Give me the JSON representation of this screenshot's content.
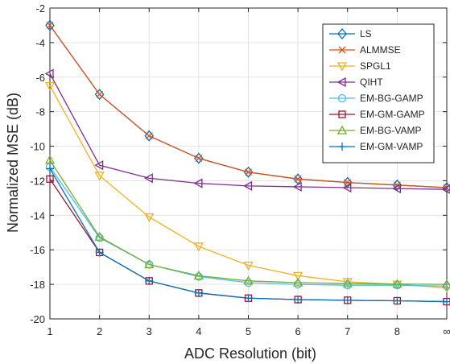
{
  "chart_data": {
    "type": "line",
    "title": "",
    "xlabel": "ADC Resolution (bit)",
    "ylabel": "Normalized MSE (dB)",
    "x": [
      1,
      2,
      3,
      4,
      5,
      6,
      7,
      8,
      9
    ],
    "x_tick_labels": [
      "1",
      "2",
      "3",
      "4",
      "5",
      "6",
      "7",
      "8",
      "∞"
    ],
    "xlim": [
      1,
      9
    ],
    "ylim": [
      -20,
      -2
    ],
    "y_ticks": [
      -20,
      -18,
      -16,
      -14,
      -12,
      -10,
      -8,
      -6,
      -4,
      -2
    ],
    "y_tick_labels": [
      "-20",
      "-18",
      "-16",
      "-14",
      "-12",
      "-10",
      "-8",
      "-6",
      "-4",
      "-2"
    ],
    "grid": true,
    "legend_position": "top-right",
    "series": [
      {
        "name": "LS",
        "color": "#0072bd",
        "marker": "diamond",
        "values": [
          -3.0,
          -7.0,
          -9.4,
          -10.7,
          -11.5,
          -11.9,
          -12.1,
          -12.25,
          -12.4
        ]
      },
      {
        "name": "ALMMSE",
        "color": "#d95319",
        "marker": "x",
        "values": [
          -3.0,
          -7.0,
          -9.4,
          -10.7,
          -11.5,
          -11.9,
          -12.1,
          -12.25,
          -12.4
        ]
      },
      {
        "name": "SPGL1",
        "color": "#edb120",
        "marker": "triangle-down",
        "values": [
          -6.5,
          -11.7,
          -14.1,
          -15.8,
          -16.9,
          -17.5,
          -17.85,
          -18.0,
          -18.2
        ]
      },
      {
        "name": "QIHT",
        "color": "#7e2f8e",
        "marker": "triangle-left",
        "values": [
          -5.8,
          -11.1,
          -11.85,
          -12.15,
          -12.3,
          -12.35,
          -12.4,
          -12.45,
          -12.5
        ]
      },
      {
        "name": "EM-BG-GAMP",
        "color": "#4dbeee",
        "marker": "circle",
        "values": [
          -11.2,
          -15.3,
          -16.85,
          -17.55,
          -17.9,
          -18.0,
          -18.05,
          -18.05,
          -18.1
        ]
      },
      {
        "name": "EM-GM-GAMP",
        "color": "#a2142f",
        "marker": "square",
        "values": [
          -11.9,
          -16.15,
          -17.8,
          -18.5,
          -18.8,
          -18.88,
          -18.92,
          -18.95,
          -19.0
        ]
      },
      {
        "name": "EM-BG-VAMP",
        "color": "#77ac30",
        "marker": "triangle-up",
        "values": [
          -10.8,
          -15.25,
          -16.85,
          -17.5,
          -17.8,
          -17.9,
          -17.95,
          -17.98,
          -18.0
        ]
      },
      {
        "name": "EM-GM-VAMP",
        "color": "#0072bd",
        "marker": "plus",
        "values": [
          -11.3,
          -16.15,
          -17.8,
          -18.5,
          -18.8,
          -18.88,
          -18.92,
          -18.95,
          -19.0
        ]
      }
    ]
  }
}
